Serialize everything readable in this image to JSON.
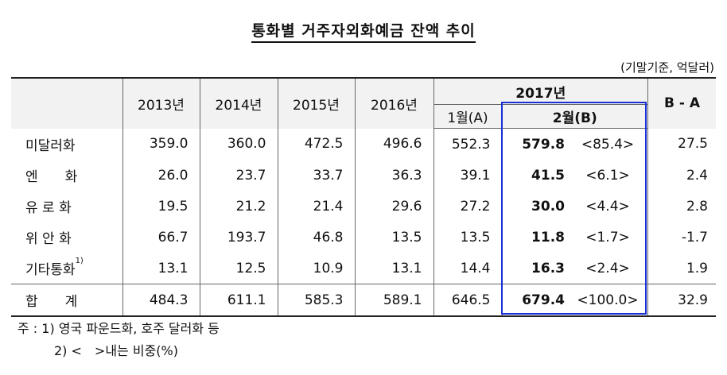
{
  "title": "통화별 거주자외화예금 잔액 추이",
  "unit": "(기말기준, 억달러)",
  "header": {
    "years": [
      "2013년",
      "2014년",
      "2015년",
      "2016년"
    ],
    "year_2017": "2017년",
    "month_a": "1월(A)",
    "month_b": "2월(B)",
    "diff": "B - A"
  },
  "rows": [
    {
      "label": "미달러화",
      "sup": "",
      "v2013": "359.0",
      "v2014": "360.0",
      "v2015": "472.5",
      "v2016": "496.6",
      "jan": "552.3",
      "feb": "579.8",
      "share": "<85.4>",
      "diff": "27.5"
    },
    {
      "label": "엔　　화",
      "sup": "",
      "v2013": "26.0",
      "v2014": "23.7",
      "v2015": "33.7",
      "v2016": "36.3",
      "jan": "39.1",
      "feb": "41.5",
      "share": "<6.1>",
      "diff": "2.4"
    },
    {
      "label": "유 로 화",
      "sup": "",
      "v2013": "19.5",
      "v2014": "21.2",
      "v2015": "21.4",
      "v2016": "29.6",
      "jan": "27.2",
      "feb": "30.0",
      "share": "<4.4>",
      "diff": "2.8"
    },
    {
      "label": "위 안 화",
      "sup": "",
      "v2013": "66.7",
      "v2014": "193.7",
      "v2015": "46.8",
      "v2016": "13.5",
      "jan": "13.5",
      "feb": "11.8",
      "share": "<1.7>",
      "diff": "-1.7"
    },
    {
      "label": "기타통화",
      "sup": "1)",
      "v2013": "13.1",
      "v2014": "12.5",
      "v2015": "10.9",
      "v2016": "13.1",
      "jan": "14.4",
      "feb": "16.3",
      "share": "<2.4>",
      "diff": "1.9"
    }
  ],
  "total": {
    "label": "합　　계",
    "v2013": "484.3",
    "v2014": "611.1",
    "v2015": "585.3",
    "v2016": "589.1",
    "jan": "646.5",
    "feb": "679.4",
    "share": "<100.0>",
    "diff": "32.9"
  },
  "notes": [
    "주 : 1) 영국 파운드화, 호주 달러화 등",
    "2) <　>내는 비중(%)"
  ],
  "colors": {
    "highlight_box": "#1a2fd6",
    "header_bg": "#f2f2f2"
  }
}
